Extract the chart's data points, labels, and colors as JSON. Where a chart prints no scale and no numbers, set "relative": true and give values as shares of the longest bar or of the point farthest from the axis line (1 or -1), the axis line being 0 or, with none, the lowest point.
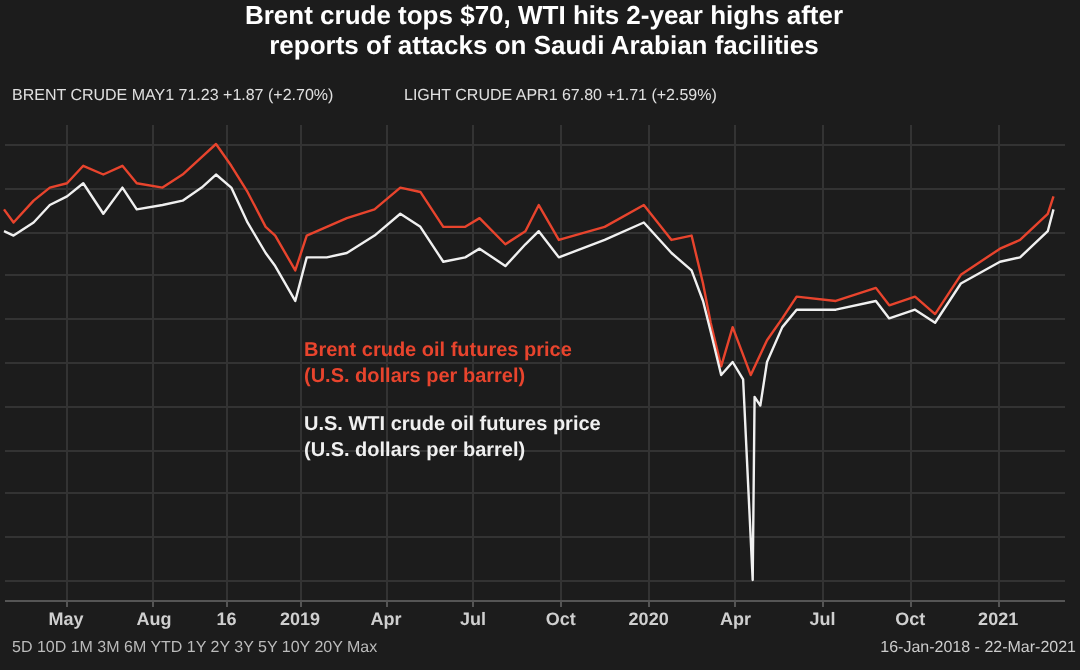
{
  "chart_data": {
    "type": "line",
    "title": "Brent crude tops $70, WTI hits 2-year highs after reports of attacks on Saudi Arabian facilities",
    "relative": true,
    "grid": true,
    "legend": false,
    "annotations": [
      "BRENT CRUDE MAY1 71.23 +1.87 (+2.70%)",
      "LIGHT CRUDE APR1 67.80 +1.71 (+2.59%)",
      "5D  10D  1M  3M  6M  YTD  1Y  2Y  3Y  5Y  10Y  20Y  Max",
      "16-Jan-2018 - 22-Mar-2021"
    ],
    "xlim": [
      "2018-02-26",
      "2021-03-12"
    ],
    "xticks": [
      {
        "value": "2018-05-01",
        "label": "May"
      },
      {
        "value": "2018-08-01",
        "label": "Aug"
      },
      {
        "value": "2018-10-16",
        "label": "16"
      },
      {
        "value": "2019-01-01",
        "label": "2019"
      },
      {
        "value": "2019-04-01",
        "label": "Apr"
      },
      {
        "value": "2019-07-01",
        "label": "Jul"
      },
      {
        "value": "2019-10-01",
        "label": "Oct"
      },
      {
        "value": "2020-01-01",
        "label": "2020"
      },
      {
        "value": "2020-04-01",
        "label": "Apr"
      },
      {
        "value": "2020-07-01",
        "label": "Jul"
      },
      {
        "value": "2020-10-01",
        "label": "Oct"
      },
      {
        "value": "2021-01-01",
        "label": "2021"
      }
    ],
    "series": [
      {
        "name": "Brent crude oil futures price\n(U.S. dollars per barrel)",
        "color": "#e8442d",
        "x": [
          "2018-02-26",
          "2018-03-08",
          "2018-03-29",
          "2018-04-15",
          "2018-05-03",
          "2018-05-20",
          "2018-06-10",
          "2018-06-30",
          "2018-07-15",
          "2018-08-11",
          "2018-09-01",
          "2018-09-21",
          "2018-10-06",
          "2018-10-22",
          "2018-11-08",
          "2018-11-27",
          "2018-12-07",
          "2018-12-28",
          "2019-01-09",
          "2019-01-30",
          "2019-02-20",
          "2019-03-21",
          "2019-04-17",
          "2019-05-08",
          "2019-06-01",
          "2019-06-24",
          "2019-07-09",
          "2019-08-05",
          "2019-08-26",
          "2019-09-09",
          "2019-09-30",
          "2019-11-17",
          "2019-12-28",
          "2020-01-26",
          "2020-02-16",
          "2020-02-28",
          "2020-03-07",
          "2020-03-18",
          "2020-03-30",
          "2020-04-18",
          "2020-05-05",
          "2020-05-21",
          "2020-06-05",
          "2020-07-16",
          "2020-08-27",
          "2020-09-10",
          "2020-10-07",
          "2020-10-28",
          "2020-11-24",
          "2021-01-04",
          "2021-01-25",
          "2021-02-23",
          "2021-03-01"
        ],
        "values": [
          0.85,
          0.82,
          0.87,
          0.9,
          0.91,
          0.95,
          0.93,
          0.95,
          0.91,
          0.9,
          0.93,
          0.97,
          1.0,
          0.95,
          0.89,
          0.81,
          0.79,
          0.71,
          0.79,
          0.81,
          0.83,
          0.85,
          0.9,
          0.89,
          0.81,
          0.81,
          0.83,
          0.77,
          0.8,
          0.86,
          0.78,
          0.81,
          0.86,
          0.78,
          0.79,
          0.68,
          0.59,
          0.49,
          0.58,
          0.47,
          0.55,
          0.6,
          0.65,
          0.64,
          0.67,
          0.63,
          0.65,
          0.61,
          0.7,
          0.76,
          0.78,
          0.84,
          0.88
        ]
      },
      {
        "name": "U.S. WTI crude oil  futures price\n(U.S. dollars per barrel)",
        "color": "#f0f0f0",
        "x": [
          "2018-02-26",
          "2018-03-08",
          "2018-03-29",
          "2018-04-15",
          "2018-05-03",
          "2018-05-20",
          "2018-06-10",
          "2018-06-30",
          "2018-07-15",
          "2018-08-11",
          "2018-09-01",
          "2018-09-21",
          "2018-10-06",
          "2018-10-22",
          "2018-11-08",
          "2018-11-27",
          "2018-12-07",
          "2018-12-28",
          "2019-01-09",
          "2019-01-30",
          "2019-02-20",
          "2019-03-21",
          "2019-04-17",
          "2019-05-08",
          "2019-06-01",
          "2019-06-24",
          "2019-07-09",
          "2019-08-05",
          "2019-08-26",
          "2019-09-09",
          "2019-09-30",
          "2019-11-17",
          "2019-12-28",
          "2020-01-26",
          "2020-02-16",
          "2020-02-28",
          "2020-03-07",
          "2020-03-18",
          "2020-03-30",
          "2020-04-10",
          "2020-04-20",
          "2020-04-22",
          "2020-04-28",
          "2020-05-05",
          "2020-05-21",
          "2020-06-05",
          "2020-07-16",
          "2020-08-27",
          "2020-09-10",
          "2020-10-07",
          "2020-10-28",
          "2020-11-24",
          "2021-01-04",
          "2021-01-25",
          "2021-02-23",
          "2021-03-01"
        ],
        "values": [
          0.8,
          0.79,
          0.82,
          0.86,
          0.88,
          0.91,
          0.84,
          0.9,
          0.85,
          0.86,
          0.87,
          0.9,
          0.93,
          0.9,
          0.82,
          0.75,
          0.72,
          0.64,
          0.74,
          0.74,
          0.75,
          0.79,
          0.84,
          0.81,
          0.73,
          0.74,
          0.76,
          0.72,
          0.77,
          0.8,
          0.74,
          0.78,
          0.82,
          0.75,
          0.71,
          0.64,
          0.57,
          0.47,
          0.5,
          0.46,
          0.0,
          0.42,
          0.4,
          0.5,
          0.58,
          0.62,
          0.62,
          0.64,
          0.6,
          0.62,
          0.59,
          0.68,
          0.73,
          0.74,
          0.8,
          0.85
        ]
      }
    ]
  }
}
